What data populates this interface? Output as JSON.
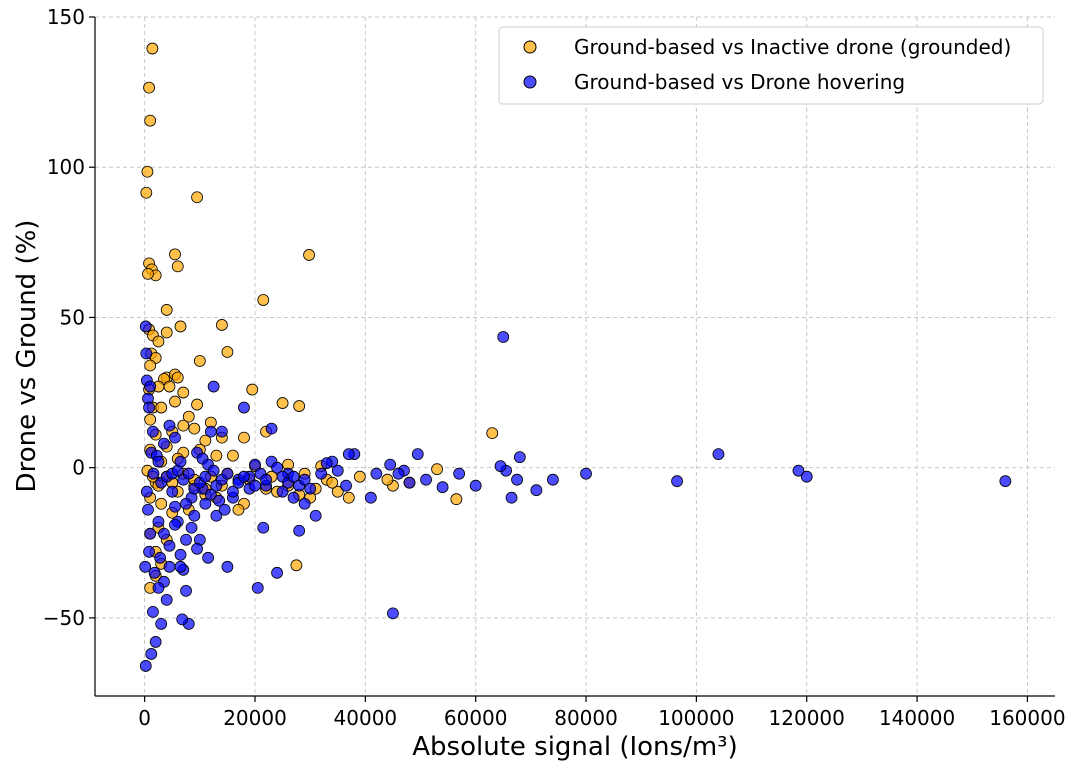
{
  "chart_data": {
    "type": "scatter",
    "xlabel": "Absolute signal (Ions/m³)",
    "ylabel": "Drone vs Ground (%)",
    "xlim": [
      -9000,
      165000
    ],
    "ylim": [
      -76,
      150
    ],
    "xticks": [
      0,
      20000,
      40000,
      60000,
      80000,
      100000,
      120000,
      140000,
      160000
    ],
    "xtick_labels": [
      "0",
      "20000",
      "40000",
      "60000",
      "80000",
      "100000",
      "120000",
      "140000",
      "160000"
    ],
    "yticks": [
      -50,
      0,
      50,
      100,
      150
    ],
    "ytick_labels": [
      "−50",
      "0",
      "50",
      "100",
      "150"
    ],
    "grid": true,
    "legend_position": "top-right",
    "series": [
      {
        "name": "Ground-based vs Inactive drone (grounded)",
        "color": "#FFA500",
        "points": [
          [
            1400,
            139.5
          ],
          [
            800,
            126.5
          ],
          [
            1000,
            115.5
          ],
          [
            500,
            98.5
          ],
          [
            300,
            91.5
          ],
          [
            9500,
            90
          ],
          [
            5500,
            71
          ],
          [
            6000,
            67
          ],
          [
            29800,
            70.8
          ],
          [
            800,
            68
          ],
          [
            1300,
            66
          ],
          [
            2000,
            64
          ],
          [
            600,
            64.5
          ],
          [
            21500,
            55.8
          ],
          [
            4000,
            52.5
          ],
          [
            14000,
            47.5
          ],
          [
            6500,
            47
          ],
          [
            800,
            46
          ],
          [
            1500,
            44
          ],
          [
            4000,
            45
          ],
          [
            2500,
            42
          ],
          [
            15000,
            38.5
          ],
          [
            1200,
            38
          ],
          [
            2000,
            36.5
          ],
          [
            10000,
            35.5
          ],
          [
            1000,
            34
          ],
          [
            4000,
            30
          ],
          [
            5500,
            31
          ],
          [
            6000,
            30
          ],
          [
            3500,
            29.5
          ],
          [
            2500,
            27
          ],
          [
            4500,
            27
          ],
          [
            800,
            26
          ],
          [
            7000,
            25
          ],
          [
            19500,
            26
          ],
          [
            5500,
            22
          ],
          [
            1500,
            20
          ],
          [
            3000,
            20
          ],
          [
            9500,
            21
          ],
          [
            25000,
            21.5
          ],
          [
            28000,
            20.5
          ],
          [
            1000,
            16
          ],
          [
            8000,
            17
          ],
          [
            12000,
            15
          ],
          [
            7000,
            14
          ],
          [
            22000,
            12
          ],
          [
            2000,
            11
          ],
          [
            5000,
            12
          ],
          [
            9000,
            13
          ],
          [
            14000,
            10
          ],
          [
            18000,
            10
          ],
          [
            4000,
            7
          ],
          [
            11000,
            9
          ],
          [
            1000,
            6
          ],
          [
            7000,
            5
          ],
          [
            10000,
            6
          ],
          [
            13000,
            4
          ],
          [
            16000,
            4
          ],
          [
            3000,
            2
          ],
          [
            6000,
            3
          ],
          [
            20000,
            0.5
          ],
          [
            26000,
            1
          ],
          [
            32000,
            0.5
          ],
          [
            63000,
            11.5
          ],
          [
            53000,
            -0.5
          ],
          [
            39000,
            -3
          ],
          [
            33000,
            -4
          ],
          [
            37000,
            -10
          ],
          [
            56500,
            -10.5
          ],
          [
            45000,
            -6
          ],
          [
            48000,
            -5
          ],
          [
            44000,
            -4
          ],
          [
            26000,
            -6
          ],
          [
            24000,
            -8
          ],
          [
            22000,
            -7
          ],
          [
            18000,
            -12
          ],
          [
            17000,
            -14
          ],
          [
            13000,
            -10
          ],
          [
            11000,
            -9
          ],
          [
            9000,
            -6
          ],
          [
            6000,
            -8
          ],
          [
            2000,
            -5
          ],
          [
            1000,
            -10
          ],
          [
            3000,
            -12
          ],
          [
            5000,
            -15
          ],
          [
            8000,
            -14
          ],
          [
            2500,
            -20
          ],
          [
            1000,
            -22
          ],
          [
            4000,
            -24
          ],
          [
            2000,
            -28
          ],
          [
            3000,
            -32
          ],
          [
            2000,
            -36
          ],
          [
            1000,
            -40
          ],
          [
            27500,
            -32.5
          ],
          [
            30000,
            -10
          ],
          [
            28000,
            -9
          ],
          [
            35000,
            -8
          ],
          [
            15000,
            -2
          ],
          [
            12000,
            -3
          ],
          [
            7000,
            -2
          ],
          [
            4000,
            -3
          ],
          [
            500,
            -1
          ],
          [
            1500,
            -3
          ],
          [
            2500,
            -6
          ],
          [
            5000,
            -5
          ],
          [
            9000,
            -4
          ],
          [
            11000,
            -7
          ],
          [
            14000,
            -6
          ],
          [
            19000,
            -4
          ],
          [
            23000,
            -3
          ],
          [
            29000,
            -2
          ],
          [
            31000,
            -7
          ],
          [
            34000,
            -5
          ]
        ]
      },
      {
        "name": "Ground-based vs Drone hovering",
        "color": "#0000FF",
        "points": [
          [
            156000,
            -4.5
          ],
          [
            120000,
            -3
          ],
          [
            118500,
            -1
          ],
          [
            104000,
            4.5
          ],
          [
            96500,
            -4.5
          ],
          [
            80000,
            -2
          ],
          [
            74000,
            -4
          ],
          [
            71000,
            -7.5
          ],
          [
            68000,
            3.5
          ],
          [
            67500,
            -4
          ],
          [
            66500,
            -10
          ],
          [
            65500,
            -1
          ],
          [
            64500,
            0.5
          ],
          [
            65000,
            43.5
          ],
          [
            60000,
            -6
          ],
          [
            57000,
            -2
          ],
          [
            54000,
            -6.5
          ],
          [
            51000,
            -4
          ],
          [
            49500,
            4.5
          ],
          [
            48000,
            -5
          ],
          [
            47000,
            -1
          ],
          [
            46000,
            -2
          ],
          [
            45000,
            -48.5
          ],
          [
            44500,
            1
          ],
          [
            42000,
            -2
          ],
          [
            41000,
            -10
          ],
          [
            38000,
            4.5
          ],
          [
            37000,
            4.5
          ],
          [
            36500,
            -6
          ],
          [
            35000,
            -1
          ],
          [
            34000,
            2
          ],
          [
            33000,
            1.5
          ],
          [
            32000,
            -2
          ],
          [
            31000,
            -16
          ],
          [
            29000,
            -12
          ],
          [
            28000,
            -21
          ],
          [
            27000,
            -10
          ],
          [
            26000,
            -2
          ],
          [
            25000,
            -3
          ],
          [
            24000,
            -35
          ],
          [
            23000,
            13
          ],
          [
            22000,
            -6
          ],
          [
            21500,
            -20
          ],
          [
            20500,
            -40
          ],
          [
            20000,
            1
          ],
          [
            19000,
            -3
          ],
          [
            18000,
            20
          ],
          [
            17000,
            -4
          ],
          [
            16000,
            -10
          ],
          [
            15000,
            -33
          ],
          [
            14000,
            12
          ],
          [
            13000,
            -16
          ],
          [
            12500,
            27
          ],
          [
            12000,
            12
          ],
          [
            11500,
            -30
          ],
          [
            11000,
            -12
          ],
          [
            10500,
            -7
          ],
          [
            10000,
            -24
          ],
          [
            9500,
            -27
          ],
          [
            9000,
            -16
          ],
          [
            8500,
            -10
          ],
          [
            8000,
            -52
          ],
          [
            7500,
            -41
          ],
          [
            7000,
            -34
          ],
          [
            6800,
            -50.5
          ],
          [
            6500,
            -33
          ],
          [
            6000,
            -18
          ],
          [
            5500,
            -13
          ],
          [
            5000,
            -8
          ],
          [
            4500,
            -33
          ],
          [
            4000,
            -44
          ],
          [
            3500,
            -38
          ],
          [
            3000,
            -52
          ],
          [
            2800,
            -30
          ],
          [
            2500,
            -40
          ],
          [
            2000,
            -58
          ],
          [
            1800,
            -35
          ],
          [
            1500,
            -48
          ],
          [
            1200,
            -62
          ],
          [
            1000,
            -22
          ],
          [
            800,
            -28
          ],
          [
            600,
            -14
          ],
          [
            400,
            -8
          ],
          [
            200,
            -66
          ],
          [
            100,
            -33
          ],
          [
            300,
            38
          ],
          [
            200,
            47
          ],
          [
            400,
            29
          ],
          [
            600,
            23
          ],
          [
            800,
            20
          ],
          [
            1000,
            27
          ],
          [
            1200,
            5
          ],
          [
            1600,
            -2
          ],
          [
            2200,
            4
          ],
          [
            3000,
            -5
          ],
          [
            4000,
            -3
          ],
          [
            5000,
            -2
          ],
          [
            6000,
            -1
          ],
          [
            7000,
            -4
          ],
          [
            8000,
            -2
          ],
          [
            9000,
            -7
          ],
          [
            10000,
            -5
          ],
          [
            11000,
            -3
          ],
          [
            12000,
            -9
          ],
          [
            13000,
            -6
          ],
          [
            14000,
            -4
          ],
          [
            15000,
            -2
          ],
          [
            16000,
            -8
          ],
          [
            17000,
            -5
          ],
          [
            18000,
            -3
          ],
          [
            19000,
            -7
          ],
          [
            20000,
            -6
          ],
          [
            21000,
            -2
          ],
          [
            22000,
            -4
          ],
          [
            23000,
            2
          ],
          [
            24000,
            0
          ],
          [
            25000,
            -8
          ],
          [
            26000,
            -5
          ],
          [
            27000,
            -3
          ],
          [
            28000,
            -6
          ],
          [
            29000,
            -4
          ],
          [
            30000,
            -7
          ],
          [
            2500,
            2
          ],
          [
            3500,
            8
          ],
          [
            4500,
            14
          ],
          [
            5500,
            10
          ],
          [
            6500,
            2
          ],
          [
            7500,
            -12
          ],
          [
            8500,
            -20
          ],
          [
            9500,
            5
          ],
          [
            10500,
            3
          ],
          [
            11500,
            1
          ],
          [
            12500,
            -1
          ],
          [
            13500,
            -11
          ],
          [
            14500,
            -14
          ],
          [
            1500,
            12
          ],
          [
            2500,
            -18
          ],
          [
            3500,
            -22
          ],
          [
            4500,
            -26
          ],
          [
            5500,
            -19
          ],
          [
            6500,
            -29
          ],
          [
            7500,
            -24
          ]
        ]
      }
    ]
  }
}
